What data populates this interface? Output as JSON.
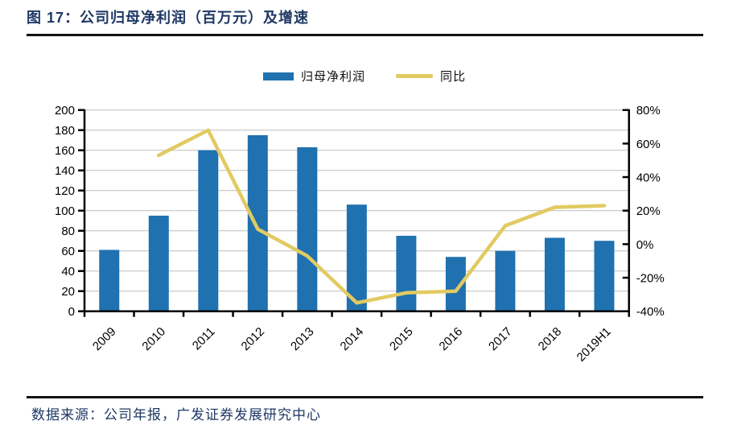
{
  "figure": {
    "title": "图 17：公司归母净利润（百万元）及增速",
    "source": "数据来源：公司年报，广发证券发展研究中心"
  },
  "legend": [
    {
      "label": "归母净利润",
      "swatch": "bar"
    },
    {
      "label": "同比",
      "swatch": "line"
    }
  ],
  "colors": {
    "bar": "#2071AF",
    "line": "#E2CA62",
    "title_text": "#1F3864",
    "rule": "#121212",
    "gridline": "#C6C6C6",
    "axis": "#000000",
    "tick_label": "#000000"
  },
  "chart_data": {
    "type": "bar",
    "subtype": "bar+line combo, dual axis",
    "title": "公司归母净利润（百万元）及增速",
    "categories": [
      "2009",
      "2010",
      "2011",
      "2012",
      "2013",
      "2014",
      "2015",
      "2016",
      "2017",
      "2018",
      "2019H1"
    ],
    "series": [
      {
        "name": "归母净利润",
        "type": "bar",
        "axis": "left",
        "values": [
          61,
          95,
          160,
          175,
          163,
          106,
          75,
          54,
          60,
          73,
          70
        ]
      },
      {
        "name": "同比",
        "type": "line",
        "axis": "right",
        "unit": "%",
        "values": [
          null,
          53,
          68,
          9,
          -7,
          -35,
          -29,
          -28,
          11,
          22,
          23
        ]
      }
    ],
    "left_axis": {
      "min": 0,
      "max": 200,
      "step": 20,
      "tick_labels": [
        "0",
        "20",
        "40",
        "60",
        "80",
        "100",
        "120",
        "140",
        "160",
        "180",
        "200"
      ]
    },
    "right_axis": {
      "min": -40,
      "max": 80,
      "step": 20,
      "tick_labels": [
        "-40%",
        "-20%",
        "0%",
        "20%",
        "40%",
        "60%",
        "80%"
      ]
    },
    "grid": true,
    "legend_position": "top",
    "x_tick_label_rotation": -45
  }
}
